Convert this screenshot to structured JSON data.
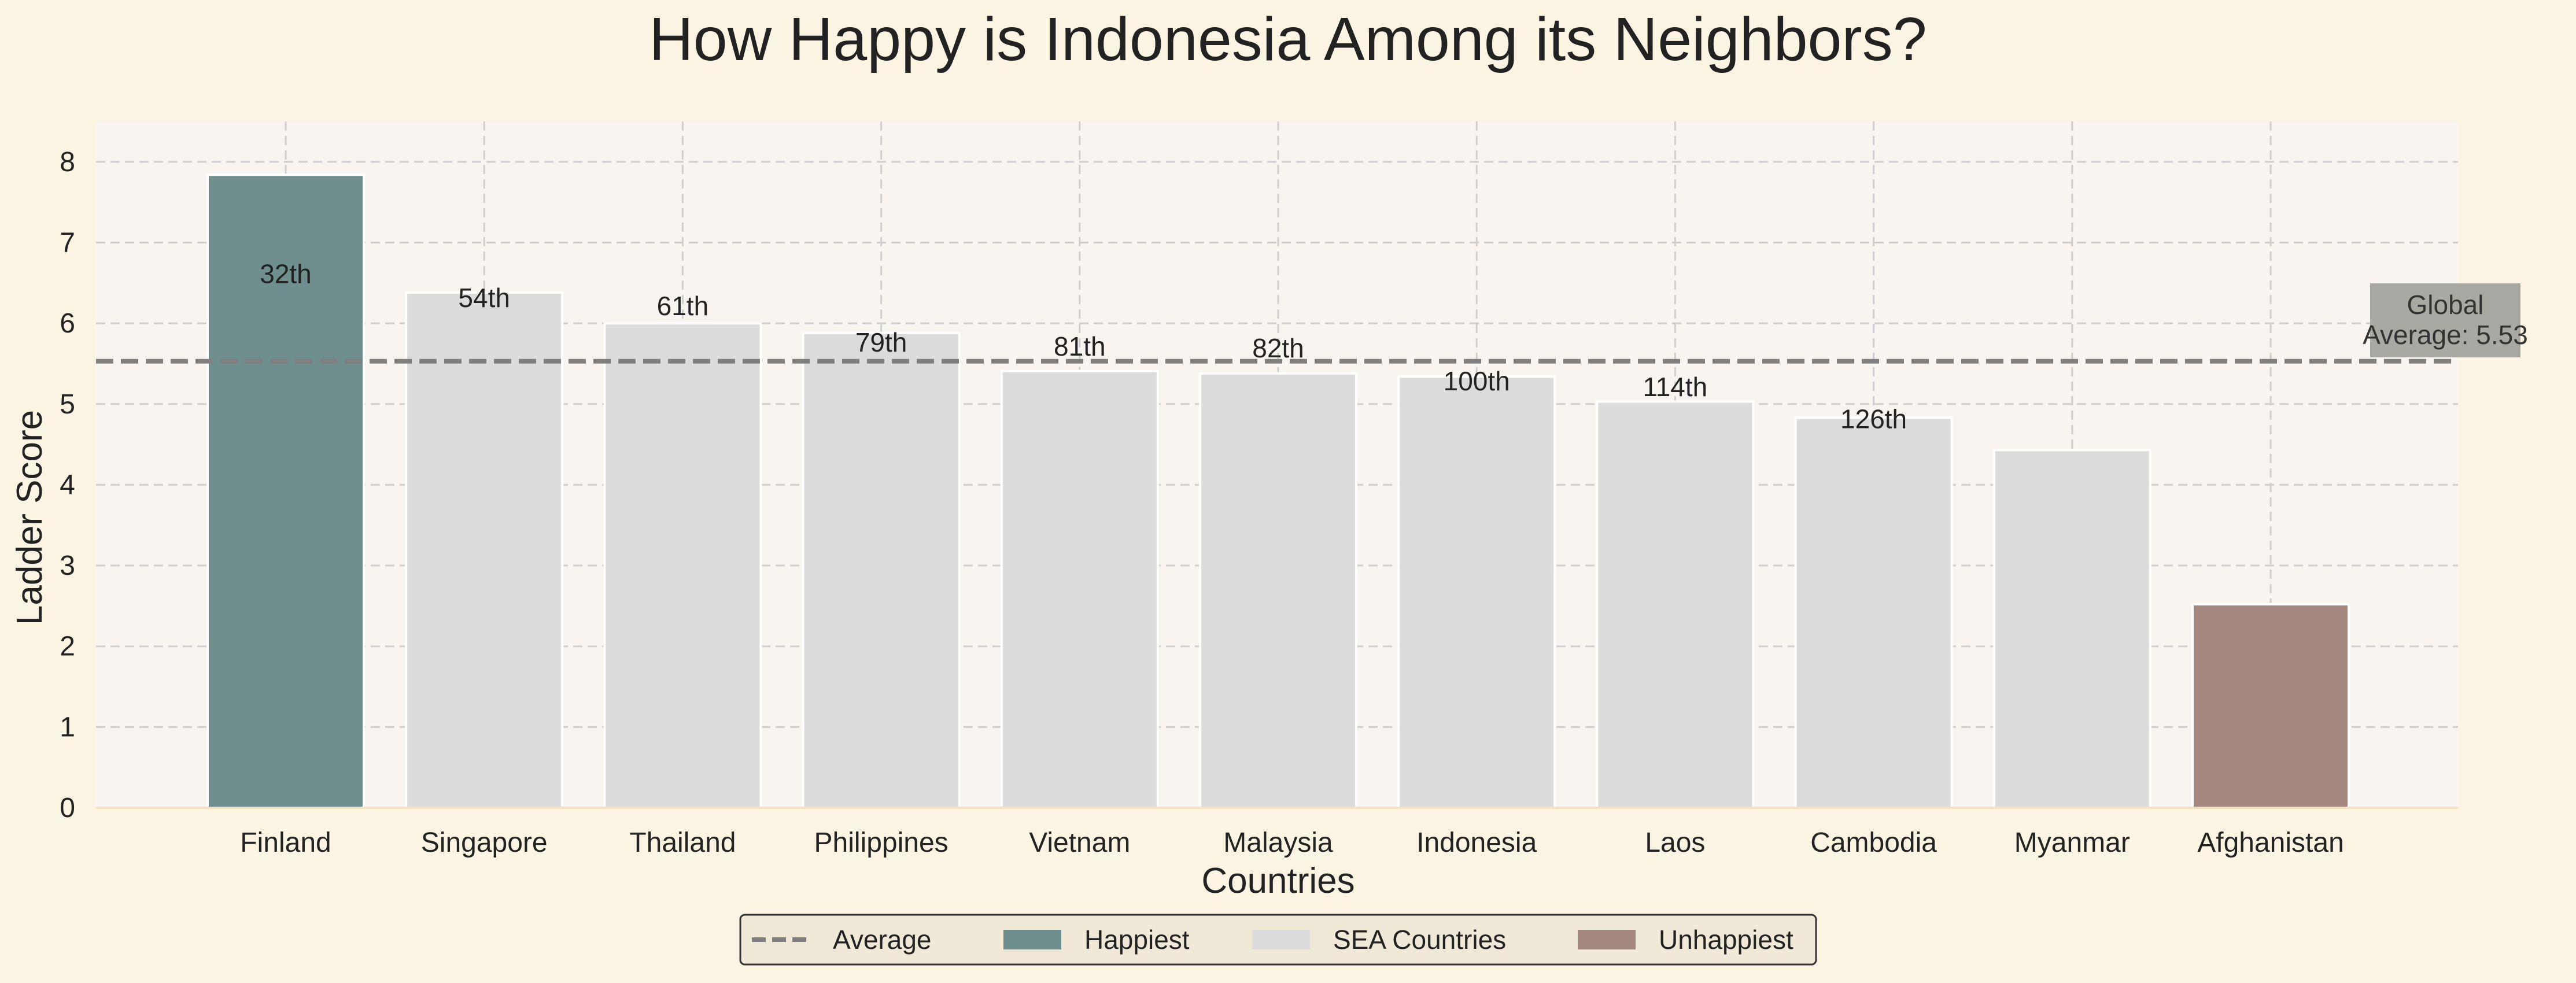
{
  "colors": {
    "figure_bg": "#fcf4e2",
    "plot_bg": "#f8f4ef",
    "happiest": "#6e8f8e",
    "sea": "#dcdcdc",
    "unhappiest": "#a4877e",
    "average_line": "#7f7f7f",
    "grid": "#cfcfcf",
    "annotation_bg": "#a9a9a3"
  },
  "chart_data": {
    "type": "bar",
    "title": "How Happy is Indonesia Among its Neighbors?",
    "xlabel": "Countries",
    "ylabel": "Ladder Score",
    "ylim": [
      0,
      8.5
    ],
    "yticks": [
      0,
      1,
      2,
      3,
      4,
      5,
      6,
      7,
      8
    ],
    "grid": true,
    "categories": [
      "Finland",
      "Singapore",
      "Thailand",
      "Philippines",
      "Vietnam",
      "Malaysia",
      "Indonesia",
      "Laos",
      "Cambodia",
      "Myanmar",
      "Afghanistan"
    ],
    "values": [
      7.84,
      6.38,
      6.0,
      5.88,
      5.41,
      5.38,
      5.34,
      5.03,
      4.83,
      4.43,
      2.52
    ],
    "groups": [
      "happiest",
      "sea",
      "sea",
      "sea",
      "sea",
      "sea",
      "sea",
      "sea",
      "sea",
      "sea",
      "unhappiest"
    ],
    "rank_labels": [
      "32th",
      "54th",
      "61th",
      "79th",
      "81th",
      "82th",
      "100th",
      "114th",
      "126th",
      "",
      ""
    ],
    "rank_label_y": [
      6.6,
      6.3,
      6.2,
      5.75,
      5.7,
      5.68,
      5.27,
      5.2,
      4.8,
      null,
      null
    ],
    "average": {
      "value": 5.53,
      "annotation_line1": "Global",
      "annotation_line2": "Average: 5.53"
    },
    "legend": {
      "placement": "bottom-center",
      "entries": [
        {
          "key": "average",
          "label": "Average"
        },
        {
          "key": "happiest",
          "label": "Happiest"
        },
        {
          "key": "sea",
          "label": "SEA Countries"
        },
        {
          "key": "unhappiest",
          "label": "Unhappiest"
        }
      ]
    }
  }
}
